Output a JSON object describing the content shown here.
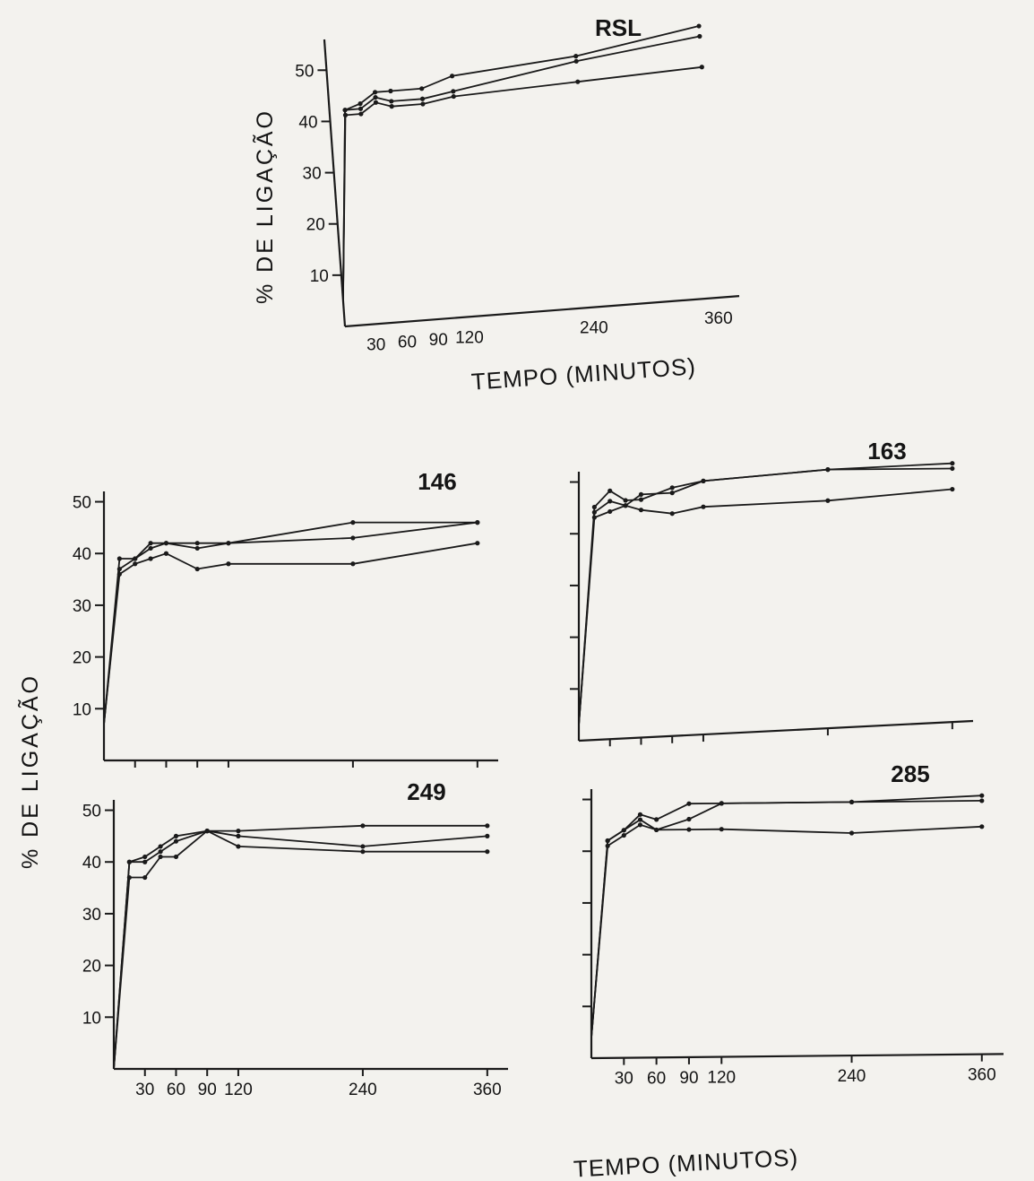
{
  "figure": {
    "ylabel": "% DE LIGAÇÃO",
    "xlabel": "TEMPO (MINUTOS)"
  },
  "chart_data": [
    {
      "type": "line",
      "title": "RSL",
      "xlabel": "TEMPO (MINUTOS)",
      "ylabel": "% DE LIGAÇÃO",
      "xlim": [
        0,
        380
      ],
      "ylim": [
        0,
        56
      ],
      "x_ticks": [
        30,
        60,
        90,
        120,
        240,
        360
      ],
      "y_ticks": [
        10,
        20,
        30,
        40,
        50
      ],
      "series": [
        {
          "x": [
            0,
            15,
            30,
            45,
            60,
            90,
            120,
            240,
            360
          ],
          "y": [
            5,
            42,
            43,
            45,
            45,
            45,
            47,
            49,
            53
          ]
        },
        {
          "x": [
            0,
            15,
            30,
            45,
            60,
            90,
            120,
            240,
            360
          ],
          "y": [
            5,
            42,
            42,
            44,
            43,
            43,
            44,
            48,
            51
          ]
        },
        {
          "x": [
            0,
            15,
            30,
            45,
            60,
            90,
            120,
            240,
            360
          ],
          "y": [
            5,
            41,
            41,
            43,
            42,
            42,
            43,
            44,
            45
          ]
        }
      ]
    },
    {
      "type": "line",
      "title": "146",
      "xlim": [
        0,
        380
      ],
      "ylim": [
        0,
        52
      ],
      "x_ticks": [
        30,
        60,
        90,
        120,
        240,
        360
      ],
      "y_ticks": [
        10,
        20,
        30,
        40,
        50
      ],
      "series": [
        {
          "x": [
            0,
            15,
            30,
            45,
            60,
            90,
            120,
            240,
            360
          ],
          "y": [
            7,
            39,
            39,
            42,
            42,
            42,
            42,
            46,
            46
          ]
        },
        {
          "x": [
            0,
            15,
            30,
            45,
            60,
            90,
            120,
            240,
            360
          ],
          "y": [
            7,
            37,
            39,
            41,
            42,
            41,
            42,
            43,
            46
          ]
        },
        {
          "x": [
            0,
            15,
            30,
            45,
            60,
            90,
            120,
            240,
            360
          ],
          "y": [
            7,
            36,
            38,
            39,
            40,
            37,
            38,
            38,
            42
          ]
        }
      ]
    },
    {
      "type": "line",
      "title": "163",
      "xlim": [
        0,
        380
      ],
      "ylim": [
        0,
        52
      ],
      "x_ticks": [
        30,
        60,
        90,
        120,
        240,
        360
      ],
      "y_ticks": [
        10,
        20,
        30,
        40,
        50
      ],
      "series": [
        {
          "x": [
            0,
            15,
            30,
            45,
            60,
            90,
            120,
            240,
            360
          ],
          "y": [
            3,
            45,
            48,
            46,
            46,
            48,
            49,
            50,
            50
          ]
        },
        {
          "x": [
            0,
            15,
            30,
            45,
            60,
            90,
            120,
            240,
            360
          ],
          "y": [
            3,
            44,
            46,
            45,
            47,
            47,
            49,
            50,
            49
          ]
        },
        {
          "x": [
            0,
            15,
            30,
            45,
            60,
            90,
            120,
            240,
            360
          ],
          "y": [
            3,
            43,
            44,
            45,
            44,
            43,
            44,
            44,
            45
          ]
        }
      ]
    },
    {
      "type": "line",
      "title": "249",
      "xlim": [
        0,
        380
      ],
      "ylim": [
        0,
        52
      ],
      "x_ticks": [
        30,
        60,
        90,
        120,
        240,
        360
      ],
      "y_ticks": [
        10,
        20,
        30,
        40,
        50
      ],
      "series": [
        {
          "x": [
            0,
            15,
            30,
            45,
            60,
            90,
            120,
            240,
            360
          ],
          "y": [
            0,
            40,
            41,
            43,
            45,
            46,
            46,
            47,
            47
          ]
        },
        {
          "x": [
            0,
            15,
            30,
            45,
            60,
            90,
            120,
            240,
            360
          ],
          "y": [
            0,
            40,
            40,
            42,
            44,
            46,
            45,
            43,
            45
          ]
        },
        {
          "x": [
            0,
            15,
            30,
            45,
            60,
            90,
            120,
            240,
            360
          ],
          "y": [
            0,
            37,
            37,
            41,
            41,
            46,
            43,
            42,
            42
          ]
        }
      ]
    },
    {
      "type": "line",
      "title": "285",
      "xlabel": "TEMPO (MINUTOS)",
      "xlim": [
        0,
        380
      ],
      "ylim": [
        0,
        52
      ],
      "x_ticks": [
        30,
        60,
        90,
        120,
        240,
        360
      ],
      "y_ticks": [
        10,
        20,
        30,
        40,
        50
      ],
      "series": [
        {
          "x": [
            0,
            15,
            30,
            45,
            60,
            90,
            120,
            240,
            360
          ],
          "y": [
            4,
            42,
            44,
            47,
            46,
            49,
            49,
            49,
            50
          ]
        },
        {
          "x": [
            0,
            15,
            30,
            45,
            60,
            90,
            120,
            240,
            360
          ],
          "y": [
            4,
            42,
            44,
            46,
            44,
            46,
            49,
            49,
            49
          ]
        },
        {
          "x": [
            0,
            15,
            30,
            45,
            60,
            90,
            120,
            240,
            360
          ],
          "y": [
            4,
            41,
            43,
            45,
            44,
            44,
            44,
            43,
            44
          ]
        }
      ]
    }
  ]
}
